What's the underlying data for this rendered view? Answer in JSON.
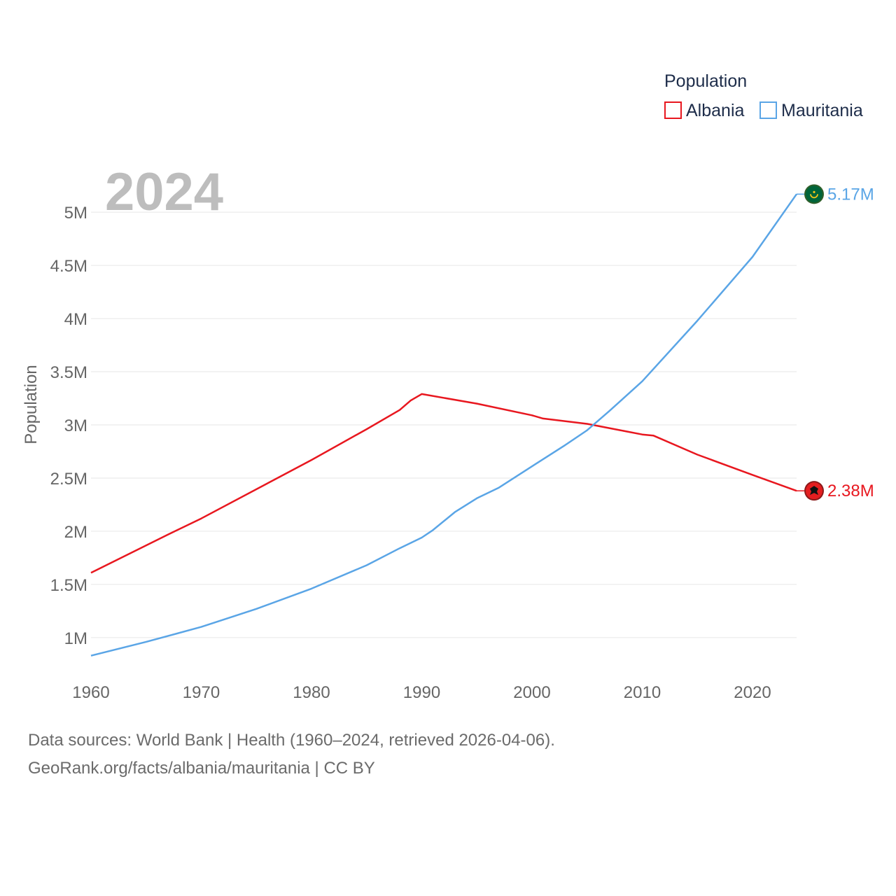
{
  "chart_data": {
    "type": "line",
    "title": "Population",
    "year_label": "2024",
    "ylabel": "Population",
    "xlabel": "",
    "xlim": [
      1960,
      2024
    ],
    "ylim": [
      0.65,
      5.35
    ],
    "x_ticks": [
      1960,
      1970,
      1980,
      1990,
      2000,
      2010,
      2020
    ],
    "y_ticks": [
      {
        "value": 1,
        "label": "1M"
      },
      {
        "value": 1.5,
        "label": "1.5M"
      },
      {
        "value": 2,
        "label": "2M"
      },
      {
        "value": 2.5,
        "label": "2.5M"
      },
      {
        "value": 3,
        "label": "3M"
      },
      {
        "value": 3.5,
        "label": "3.5M"
      },
      {
        "value": 4,
        "label": "4M"
      },
      {
        "value": 4.5,
        "label": "4.5M"
      },
      {
        "value": 5,
        "label": "5M"
      }
    ],
    "legend": {
      "title": "Population",
      "position": "top-right"
    },
    "series": [
      {
        "name": "Albania",
        "color": "#e8171f",
        "end_label": "2.38M",
        "flag_icon": "albania-flag-icon",
        "points": [
          [
            1960,
            1.61
          ],
          [
            1967,
            1.97
          ],
          [
            1970,
            2.12
          ],
          [
            1980,
            2.67
          ],
          [
            1985,
            2.96
          ],
          [
            1988,
            3.14
          ],
          [
            1989,
            3.23
          ],
          [
            1990,
            3.29
          ],
          [
            1995,
            3.2
          ],
          [
            2000,
            3.09
          ],
          [
            2001,
            3.06
          ],
          [
            2005,
            3.01
          ],
          [
            2008,
            2.95
          ],
          [
            2010,
            2.91
          ],
          [
            2011,
            2.9
          ],
          [
            2015,
            2.72
          ],
          [
            2020,
            2.53
          ],
          [
            2024,
            2.38
          ]
        ]
      },
      {
        "name": "Mauritania",
        "color": "#5aa5e6",
        "end_label": "5.17M",
        "flag_icon": "mauritania-flag-icon",
        "points": [
          [
            1960,
            0.83
          ],
          [
            1965,
            0.96
          ],
          [
            1970,
            1.1
          ],
          [
            1975,
            1.27
          ],
          [
            1980,
            1.46
          ],
          [
            1985,
            1.68
          ],
          [
            1988,
            1.84
          ],
          [
            1990,
            1.94
          ],
          [
            1991,
            2.01
          ],
          [
            1993,
            2.18
          ],
          [
            1995,
            2.31
          ],
          [
            1997,
            2.41
          ],
          [
            2000,
            2.61
          ],
          [
            2003,
            2.81
          ],
          [
            2005,
            2.95
          ],
          [
            2007,
            3.13
          ],
          [
            2010,
            3.41
          ],
          [
            2015,
            3.98
          ],
          [
            2020,
            4.58
          ],
          [
            2024,
            5.17
          ]
        ]
      }
    ]
  },
  "footer": {
    "line1": "Data sources: World Bank | Health (1960–2024, retrieved 2026-04-06).",
    "line2": "GeoRank.org/facts/albania/mauritania | CC BY"
  }
}
